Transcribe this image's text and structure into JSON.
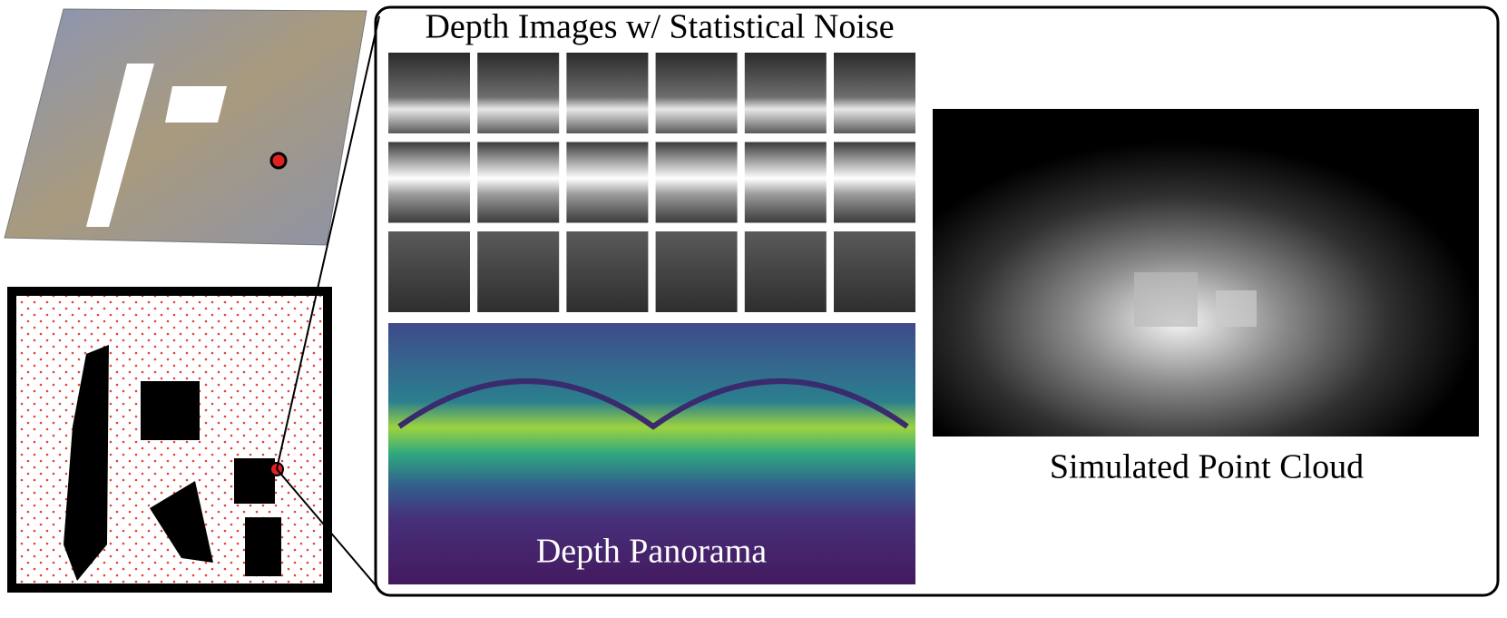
{
  "figure": {
    "depth_images_title": "Depth Images w/ Statistical Noise",
    "panorama_label": "Depth Panorama",
    "point_cloud_label": "Simulated Point Cloud"
  }
}
